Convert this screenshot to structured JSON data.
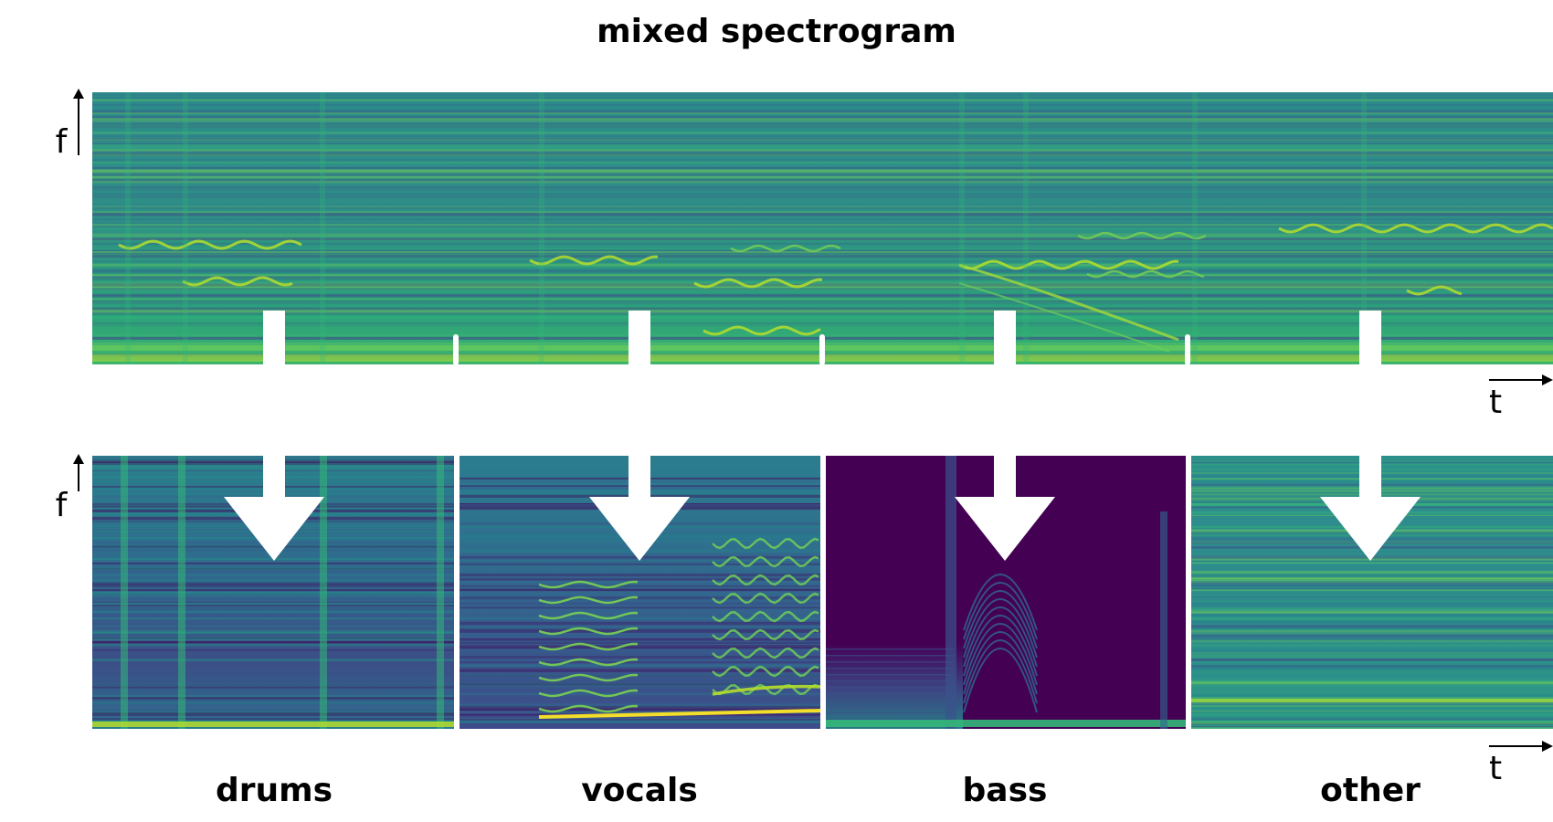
{
  "title": "mixed spectrogram",
  "axes": {
    "frequency_label": "f",
    "time_label": "t"
  },
  "mixed_spectrogram": {
    "name": "mixed spectrogram",
    "colormap": "viridis"
  },
  "sources": [
    {
      "id": "drums",
      "label": "drums"
    },
    {
      "id": "vocals",
      "label": "vocals"
    },
    {
      "id": "bass",
      "label": "bass"
    },
    {
      "id": "other",
      "label": "other"
    }
  ],
  "colors": {
    "background": "#ffffff",
    "text": "#000000",
    "arrow": "#ffffff",
    "viridis_dark": "#440154",
    "viridis_blue": "#2a788e",
    "viridis_teal": "#1f9e89",
    "viridis_green": "#35b779",
    "viridis_lime": "#a2d93a",
    "viridis_yellow": "#fde725"
  }
}
